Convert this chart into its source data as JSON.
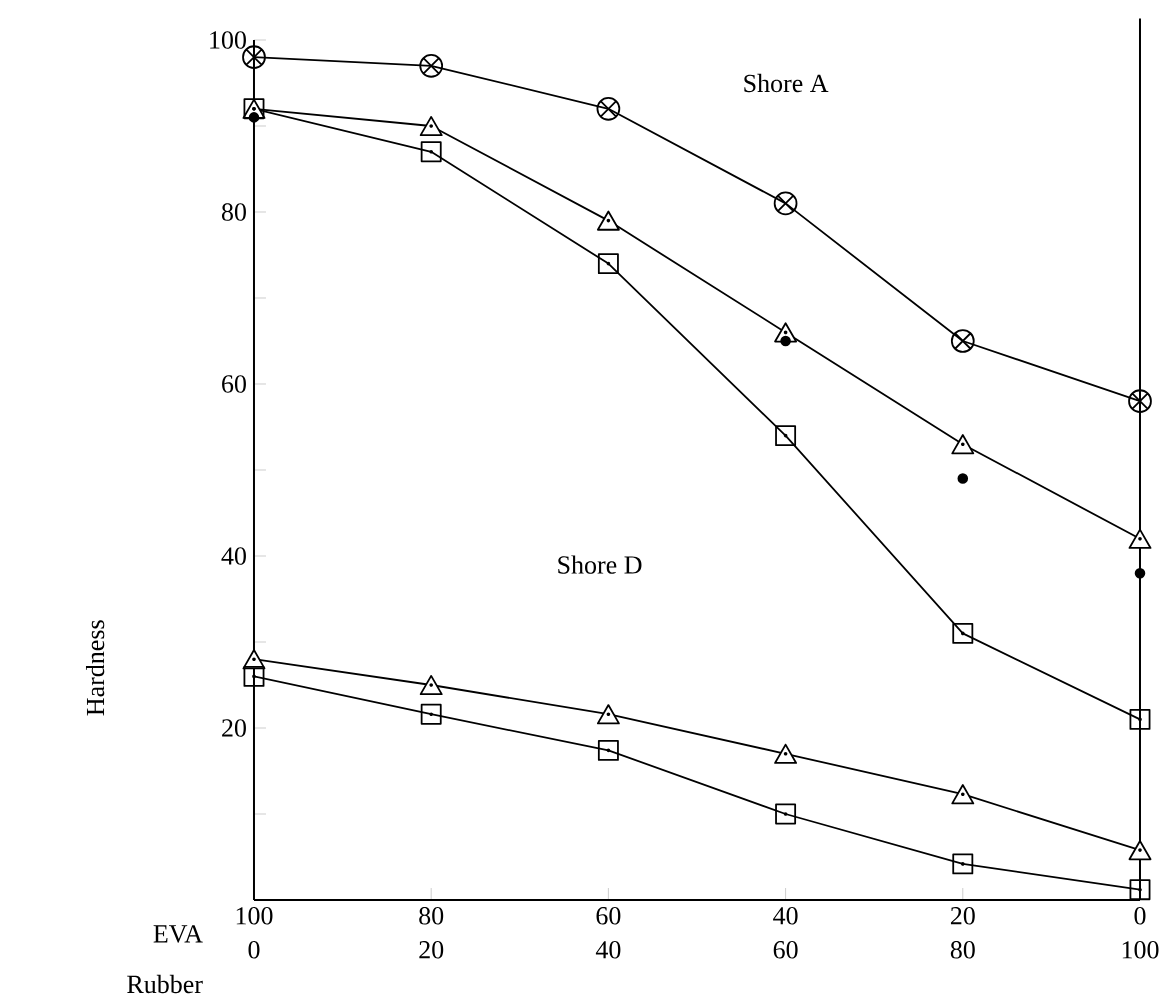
{
  "chart_data": {
    "type": "line",
    "xlabel": "EVA",
    "x2label": "Rubber",
    "ylabel": "Hardness",
    "x": [
      100,
      80,
      60,
      40,
      20,
      0
    ],
    "xlim": [
      100,
      0
    ],
    "xticks": [
      100,
      80,
      60,
      40,
      20,
      0
    ],
    "x2lim": [
      0,
      100
    ],
    "x2ticks": [
      0,
      20,
      40,
      60,
      80,
      100
    ],
    "ylim": [
      0,
      100
    ],
    "yticks": [
      {
        "value": 10,
        "label": null
      },
      20,
      {
        "value": 30,
        "label": null
      },
      40,
      {
        "value": 50,
        "label": null
      },
      60,
      {
        "value": 70,
        "label": null
      },
      80,
      {
        "value": 90,
        "label": null
      },
      100
    ],
    "annotations": [
      "Shore A",
      "Shore D"
    ],
    "series": [
      {
        "marker": "cross",
        "color": "#000000",
        "values": [
          98,
          97,
          92,
          81,
          65,
          58
        ]
      },
      {
        "marker": "triangle",
        "color": "#000000",
        "values": [
          92,
          90,
          79,
          66,
          53,
          42
        ]
      },
      {
        "marker": "square",
        "color": "#000000",
        "values": [
          92,
          87,
          74,
          54,
          31,
          21
        ]
      },
      {
        "type": "scatter",
        "marker": "circle",
        "color": "#000000",
        "values": [
          91,
          null,
          null,
          65,
          49,
          38
        ]
      },
      {
        "marker": "triangle",
        "color": "#000000",
        "values": [
          28,
          25,
          21.6,
          17,
          12.3,
          5.8
        ]
      },
      {
        "marker": "square",
        "color": "#000000",
        "values": [
          26,
          21.6,
          17.4,
          10,
          4.2,
          1.2
        ]
      }
    ]
  }
}
